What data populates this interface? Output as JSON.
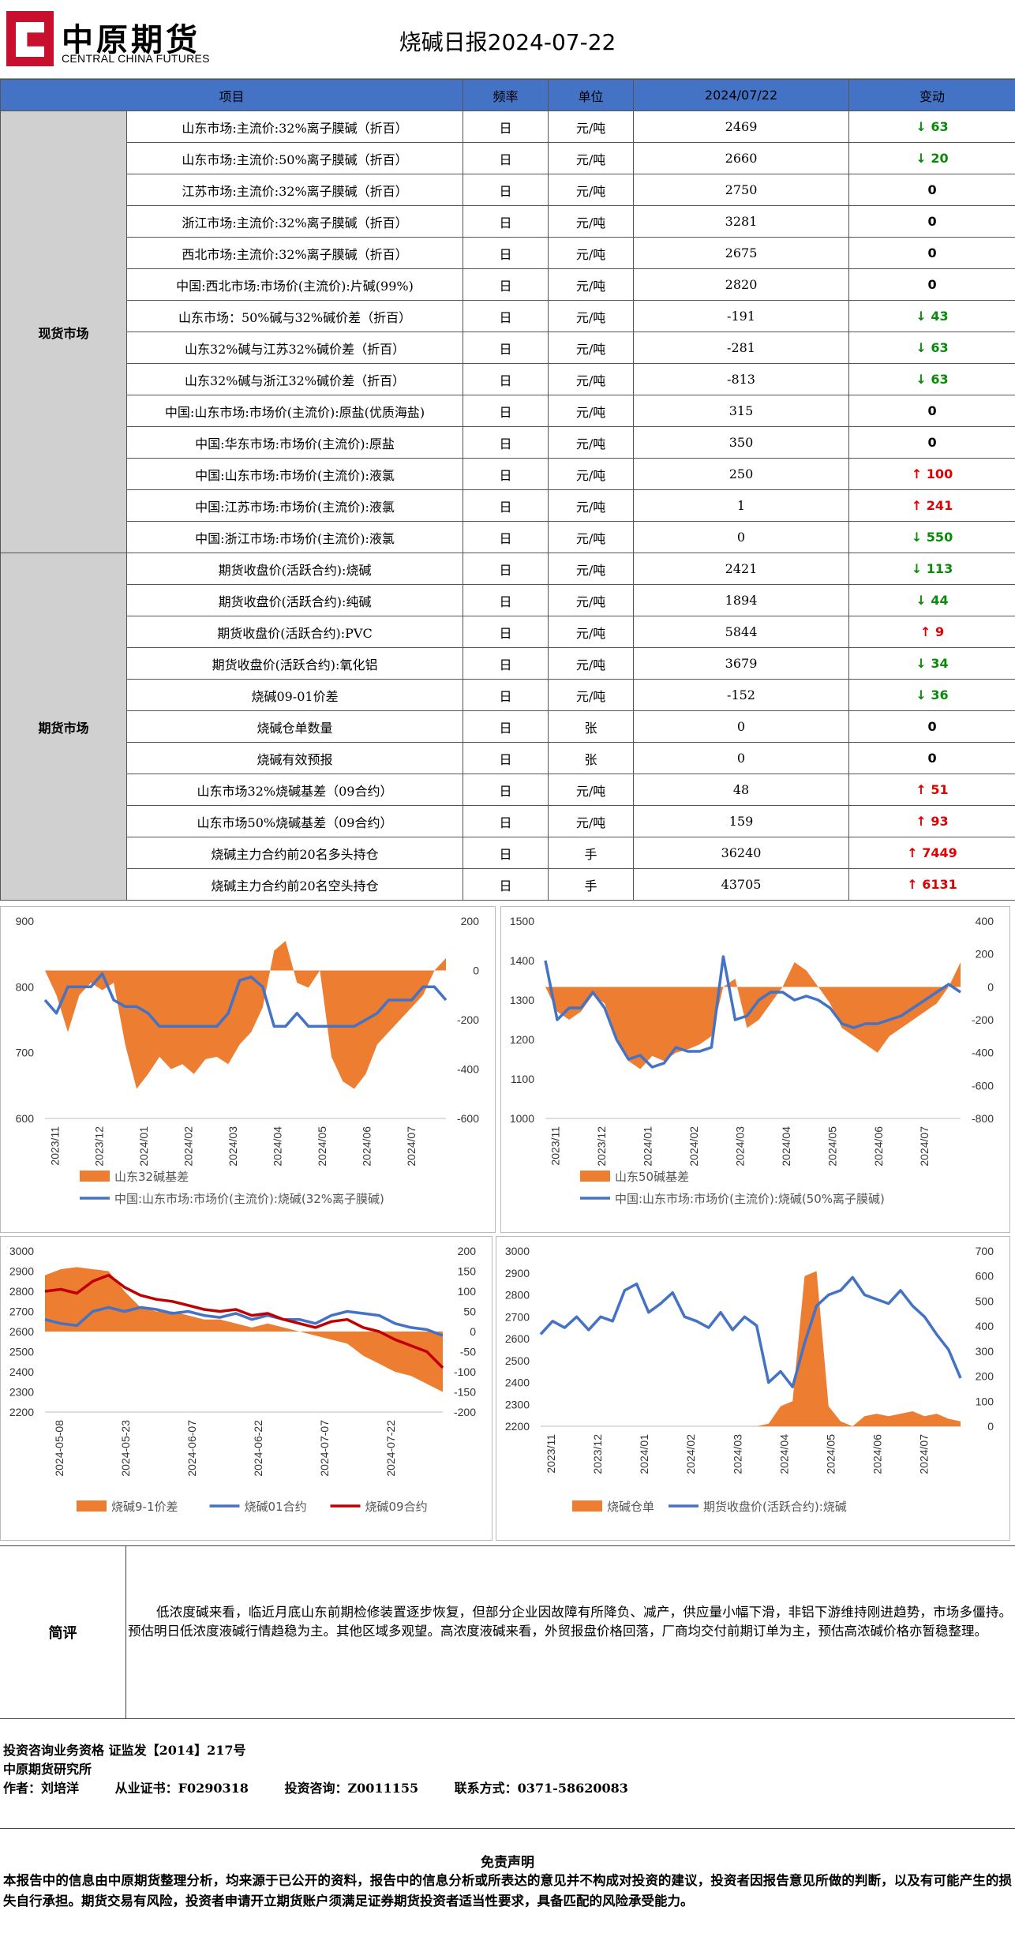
{
  "header": {
    "logo_cn": "中原期货",
    "logo_en": "CENTRAL CHINA FUTURES",
    "title": "烧碱日报2024-07-22"
  },
  "table": {
    "headers": [
      "项目",
      "频率",
      "单位",
      "2024/07/22",
      "变动"
    ],
    "sections": [
      {
        "name": "现货市场",
        "rows": [
          {
            "item": "山东市场:主流价:32%离子膜碱（折百）",
            "freq": "日",
            "unit": "元/吨",
            "value": "2469",
            "change": "63",
            "dir": "down"
          },
          {
            "item": "山东市场:主流价:50%离子膜碱（折百）",
            "freq": "日",
            "unit": "元/吨",
            "value": "2660",
            "change": "20",
            "dir": "down"
          },
          {
            "item": "江苏市场:主流价:32%离子膜碱（折百）",
            "freq": "日",
            "unit": "元/吨",
            "value": "2750",
            "change": "0",
            "dir": "none"
          },
          {
            "item": "浙江市场:主流价:32%离子膜碱（折百）",
            "freq": "日",
            "unit": "元/吨",
            "value": "3281",
            "change": "0",
            "dir": "none"
          },
          {
            "item": "西北市场:主流价:32%离子膜碱（折百）",
            "freq": "日",
            "unit": "元/吨",
            "value": "2675",
            "change": "0",
            "dir": "none"
          },
          {
            "item": "中国:西北市场:市场价(主流价):片碱(99%)",
            "freq": "日",
            "unit": "元/吨",
            "value": "2820",
            "change": "0",
            "dir": "none"
          },
          {
            "item": "山东市场：50%碱与32%碱价差（折百）",
            "freq": "日",
            "unit": "元/吨",
            "value": "-191",
            "change": "43",
            "dir": "down"
          },
          {
            "item": "山东32%碱与江苏32%碱价差（折百）",
            "freq": "日",
            "unit": "元/吨",
            "value": "-281",
            "change": "63",
            "dir": "down"
          },
          {
            "item": "山东32%碱与浙江32%碱价差（折百）",
            "freq": "日",
            "unit": "元/吨",
            "value": "-813",
            "change": "63",
            "dir": "down"
          },
          {
            "item": "中国:山东市场:市场价(主流价):原盐(优质海盐)",
            "freq": "日",
            "unit": "元/吨",
            "value": "315",
            "change": "0",
            "dir": "none"
          },
          {
            "item": "中国:华东市场:市场价(主流价):原盐",
            "freq": "日",
            "unit": "元/吨",
            "value": "350",
            "change": "0",
            "dir": "none"
          },
          {
            "item": "中国:山东市场:市场价(主流价):液氯",
            "freq": "日",
            "unit": "元/吨",
            "value": "250",
            "change": "100",
            "dir": "up"
          },
          {
            "item": "中国:江苏市场:市场价(主流价):液氯",
            "freq": "日",
            "unit": "元/吨",
            "value": "1",
            "change": "241",
            "dir": "up"
          },
          {
            "item": "中国:浙江市场:市场价(主流价):液氯",
            "freq": "日",
            "unit": "元/吨",
            "value": "0",
            "change": "550",
            "dir": "down"
          }
        ]
      },
      {
        "name": "期货市场",
        "rows": [
          {
            "item": "期货收盘价(活跃合约):烧碱",
            "freq": "日",
            "unit": "元/吨",
            "value": "2421",
            "change": "113",
            "dir": "down"
          },
          {
            "item": "期货收盘价(活跃合约):纯碱",
            "freq": "日",
            "unit": "元/吨",
            "value": "1894",
            "change": "44",
            "dir": "down"
          },
          {
            "item": "期货收盘价(活跃合约):PVC",
            "freq": "日",
            "unit": "元/吨",
            "value": "5844",
            "change": "9",
            "dir": "up"
          },
          {
            "item": "期货收盘价(活跃合约):氧化铝",
            "freq": "日",
            "unit": "元/吨",
            "value": "3679",
            "change": "34",
            "dir": "down"
          },
          {
            "item": "烧碱09-01价差",
            "freq": "日",
            "unit": "元/吨",
            "value": "-152",
            "change": "36",
            "dir": "down"
          },
          {
            "item": "烧碱仓单数量",
            "freq": "日",
            "unit": "张",
            "value": "0",
            "change": "0",
            "dir": "none"
          },
          {
            "item": "烧碱有效预报",
            "freq": "日",
            "unit": "张",
            "value": "0",
            "change": "0",
            "dir": "none"
          },
          {
            "item": "山东市场32%烧碱基差（09合约）",
            "freq": "日",
            "unit": "元/吨",
            "value": "48",
            "change": "51",
            "dir": "up"
          },
          {
            "item": "山东市场50%烧碱基差（09合约）",
            "freq": "日",
            "unit": "元/吨",
            "value": "159",
            "change": "93",
            "dir": "up"
          },
          {
            "item": "烧碱主力合约前20名多头持仓",
            "freq": "日",
            "unit": "手",
            "value": "36240",
            "change": "7449",
            "dir": "up"
          },
          {
            "item": "烧碱主力合约前20名空头持仓",
            "freq": "日",
            "unit": "手",
            "value": "43705",
            "change": "6131",
            "dir": "up"
          }
        ]
      }
    ],
    "arrows": {
      "up": "↑",
      "down": "↓"
    }
  },
  "chart_data": [
    {
      "type": "area+line",
      "title": "",
      "x_labels": [
        "2023/11",
        "2023/12",
        "2024/01",
        "2024/02",
        "2024/03",
        "2024/04",
        "2024/05",
        "2024/06",
        "2024/07"
      ],
      "left_axis": {
        "range": [
          600,
          900
        ],
        "ticks": [
          "600",
          "700",
          "800",
          "900"
        ]
      },
      "right_axis": {
        "range": [
          -600,
          200
        ],
        "ticks": [
          "-600",
          "-400",
          "-200",
          "0",
          "200"
        ]
      },
      "series": [
        {
          "name": "山东32碱基差",
          "kind": "area",
          "axis": "right",
          "color": "#ed7d31",
          "values": [
            0,
            -100,
            -250,
            -100,
            -50,
            -80,
            -50,
            -300,
            -480,
            -420,
            -350,
            -400,
            -380,
            -420,
            -360,
            -350,
            -380,
            -300,
            -250,
            -150,
            80,
            120,
            -50,
            -70,
            0,
            -350,
            -450,
            -480,
            -420,
            -300,
            -250,
            -200,
            -150,
            -100,
            0,
            50
          ]
        },
        {
          "name": "中国:山东市场:市场价(主流价):烧碱(32%离子膜碱)",
          "kind": "line",
          "axis": "left",
          "color": "#4472c4",
          "values": [
            780,
            760,
            800,
            800,
            800,
            820,
            780,
            770,
            770,
            760,
            740,
            740,
            740,
            740,
            740,
            740,
            760,
            810,
            815,
            800,
            740,
            740,
            760,
            740,
            740,
            740,
            740,
            740,
            750,
            760,
            780,
            780,
            780,
            800,
            800,
            780
          ]
        }
      ]
    },
    {
      "type": "area+line",
      "title": "",
      "x_labels": [
        "2023/11",
        "2023/12",
        "2024/01",
        "2024/02",
        "2024/03",
        "2024/04",
        "2024/05",
        "2024/06",
        "2024/07"
      ],
      "left_axis": {
        "range": [
          1000,
          1500
        ],
        "ticks": [
          "1000",
          "1100",
          "1200",
          "1300",
          "1400",
          "1500"
        ]
      },
      "right_axis": {
        "range": [
          -800,
          400
        ],
        "ticks": [
          "-800",
          "-600",
          "-400",
          "-200",
          "0",
          "200",
          "400"
        ]
      },
      "series": [
        {
          "name": "山东50碱基差",
          "kind": "area",
          "axis": "right",
          "color": "#ed7d31",
          "values": [
            0,
            -150,
            -200,
            -150,
            -50,
            -100,
            -300,
            -450,
            -500,
            -420,
            -450,
            -400,
            -380,
            -350,
            -300,
            0,
            50,
            -250,
            -200,
            -100,
            0,
            150,
            100,
            0,
            -100,
            -250,
            -300,
            -350,
            -400,
            -300,
            -250,
            -200,
            -150,
            -100,
            0,
            150
          ]
        },
        {
          "name": "中国:山东市场:市场价(主流价):烧碱(50%离子膜碱)",
          "kind": "line",
          "axis": "left",
          "color": "#4472c4",
          "values": [
            1400,
            1250,
            1280,
            1280,
            1320,
            1280,
            1200,
            1150,
            1160,
            1130,
            1140,
            1180,
            1170,
            1170,
            1180,
            1410,
            1250,
            1260,
            1300,
            1320,
            1320,
            1300,
            1310,
            1300,
            1280,
            1240,
            1230,
            1240,
            1240,
            1250,
            1260,
            1280,
            1300,
            1320,
            1340,
            1320
          ]
        }
      ]
    },
    {
      "type": "area+line",
      "title": "",
      "x_labels": [
        "2024-05-08",
        "2024-05-23",
        "2024-06-07",
        "2024-06-22",
        "2024-07-07",
        "2024-07-22"
      ],
      "left_axis": {
        "range": [
          2200,
          3000
        ],
        "ticks": [
          "2200",
          "2300",
          "2400",
          "2500",
          "2600",
          "2700",
          "2800",
          "2900",
          "3000"
        ]
      },
      "right_axis": {
        "range": [
          -200,
          200
        ],
        "ticks": [
          "-200",
          "-150",
          "-100",
          "-50",
          "0",
          "50",
          "100",
          "150",
          "200"
        ]
      },
      "series": [
        {
          "name": "烧碱9-1价差",
          "kind": "area",
          "axis": "right",
          "color": "#ed7d31",
          "values": [
            140,
            155,
            160,
            155,
            150,
            100,
            60,
            50,
            50,
            40,
            30,
            30,
            20,
            10,
            20,
            10,
            0,
            -10,
            -20,
            -30,
            -60,
            -80,
            -100,
            -110,
            -130,
            -150
          ]
        },
        {
          "name": "烧碱01合约",
          "kind": "line",
          "axis": "left",
          "color": "#4472c4",
          "values": [
            2660,
            2640,
            2630,
            2700,
            2720,
            2700,
            2720,
            2710,
            2690,
            2700,
            2680,
            2670,
            2690,
            2660,
            2680,
            2660,
            2660,
            2640,
            2680,
            2700,
            2690,
            2680,
            2640,
            2620,
            2610,
            2580
          ]
        },
        {
          "name": "烧碱09合约",
          "kind": "line",
          "axis": "left",
          "color": "#c00000",
          "values": [
            2800,
            2810,
            2790,
            2850,
            2880,
            2820,
            2780,
            2760,
            2750,
            2730,
            2710,
            2700,
            2710,
            2680,
            2690,
            2660,
            2640,
            2620,
            2650,
            2660,
            2620,
            2600,
            2560,
            2530,
            2500,
            2420
          ]
        }
      ]
    },
    {
      "type": "area+line",
      "title": "",
      "x_labels": [
        "2023/11",
        "2023/12",
        "2024/01",
        "2024/02",
        "2024/03",
        "2024/04",
        "2024/05",
        "2024/06",
        "2024/07"
      ],
      "left_axis": {
        "range": [
          2200,
          3000
        ],
        "ticks": [
          "2200",
          "2300",
          "2400",
          "2500",
          "2600",
          "2700",
          "2800",
          "2900",
          "3000"
        ]
      },
      "right_axis": {
        "range": [
          0,
          700
        ],
        "ticks": [
          "0",
          "100",
          "200",
          "300",
          "400",
          "500",
          "600",
          "700"
        ]
      },
      "series": [
        {
          "name": "烧碱仓单",
          "kind": "area",
          "axis": "right",
          "color": "#ed7d31",
          "values": [
            0,
            0,
            0,
            0,
            0,
            0,
            0,
            0,
            0,
            0,
            0,
            0,
            0,
            0,
            0,
            0,
            0,
            0,
            0,
            10,
            80,
            100,
            600,
            620,
            80,
            20,
            0,
            40,
            50,
            40,
            50,
            60,
            40,
            50,
            30,
            20
          ]
        },
        {
          "name": "期货收盘价(活跃合约):烧碱",
          "kind": "line",
          "axis": "left",
          "color": "#4472c4",
          "values": [
            2620,
            2680,
            2650,
            2700,
            2640,
            2700,
            2680,
            2820,
            2850,
            2720,
            2760,
            2810,
            2700,
            2680,
            2650,
            2720,
            2640,
            2700,
            2660,
            2400,
            2450,
            2380,
            2580,
            2750,
            2800,
            2820,
            2880,
            2800,
            2780,
            2760,
            2820,
            2750,
            2700,
            2620,
            2550,
            2420
          ]
        }
      ]
    }
  ],
  "comment": {
    "label": "简评",
    "text": "低浓度碱来看，临近月底山东前期检修装置逐步恢复，但部分企业因故障有所降负、减产，供应量小幅下滑，非铝下游维持刚进趋势，市场多僵持。预估明日低浓度液碱行情趋稳为主。其他区域多观望。高浓度液碱来看，外贸报盘价格回落，厂商均交付前期订单为主，预估高浓碱价格亦暂稳整理。"
  },
  "info": {
    "line1": "投资咨询业务资格  证监发【2014】217号",
    "line2": "中原期货研究所",
    "author": "作者：刘培洋",
    "cert": "从业证书：F0290318",
    "consult": "投资咨询：Z0011155",
    "contact": "联系方式：0371-58620083"
  },
  "disclaimer": {
    "title": "免责声明",
    "text": "本报告中的信息由中原期货整理分析，均来源于已公开的资料，报告中的信息分析或所表达的意见并不构成对投资的建议，投资者因报告意见所做的判断，以及有可能产生的损失自行承担。期货交易有风险，投资者申请开立期货账户须满足证券期货投资者适当性要求，具备匹配的风险承受能力。"
  }
}
